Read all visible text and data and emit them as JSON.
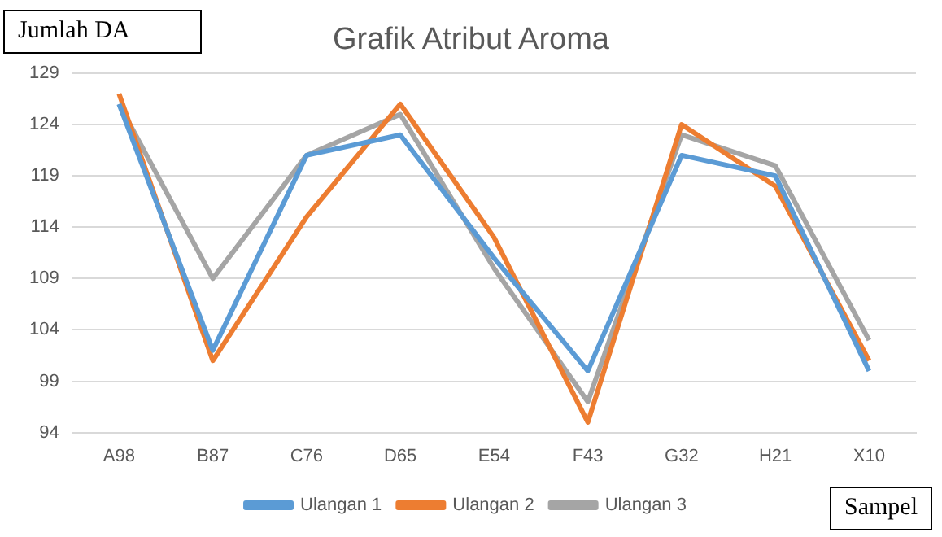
{
  "chart_data": {
    "type": "line",
    "title": "Grafik Atribut Aroma",
    "xlabel": "Sampel",
    "ylabel": "Jumlah DA",
    "categories": [
      "A98",
      "B87",
      "C76",
      "D65",
      "E54",
      "F43",
      "G32",
      "H21",
      "X10"
    ],
    "series": [
      {
        "name": "Ulangan 1",
        "color": "#5b9bd5",
        "values": [
          126,
          102,
          121,
          123,
          111,
          100,
          121,
          119,
          100
        ]
      },
      {
        "name": "Ulangan 2",
        "color": "#ed7d31",
        "values": [
          127,
          101,
          115,
          126,
          113,
          95,
          124,
          118,
          101
        ]
      },
      {
        "name": "Ulangan 3",
        "color": "#a5a5a5",
        "values": [
          126,
          109,
          121,
          125,
          110,
          97,
          123,
          120,
          103
        ]
      }
    ],
    "ylim": [
      94,
      129
    ],
    "yticks": [
      94,
      99,
      104,
      109,
      114,
      119,
      124,
      129
    ],
    "grid": "y",
    "legend": "bottom",
    "marker": "none",
    "line_style": "solid"
  }
}
